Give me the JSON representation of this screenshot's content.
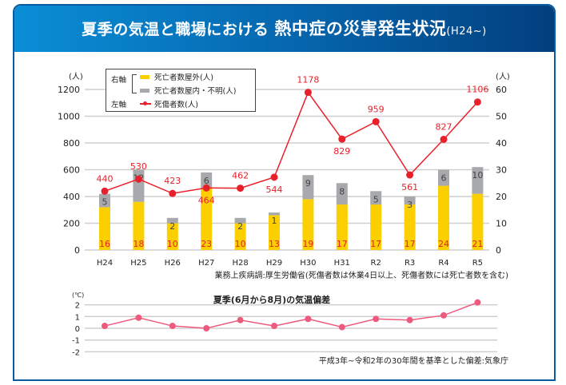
{
  "header": {
    "title_part1": "夏季の気温と職場における",
    "title_part2": "熱中症の災害発生状況",
    "title_part3": "(H24~)"
  },
  "legend": {
    "right_axis": "右軸",
    "left_axis": "左軸",
    "outdoor": "死亡者数屋外(人)",
    "indoor": "死亡者数屋内・不明(人)",
    "casualties": "死傷者数(人)"
  },
  "colors": {
    "outdoor": "#fccf00",
    "indoor": "#a7a9ac",
    "casualties": "#e8202a",
    "temp": "#ee5a7e",
    "header_start": "#0a8ed6",
    "header_end": "#023f7e"
  },
  "chart_data": [
    {
      "type": "bar+line",
      "categories": [
        "H24",
        "H25",
        "H26",
        "H27",
        "H28",
        "H29",
        "H30",
        "H31",
        "R2",
        "R3",
        "R4",
        "R5"
      ],
      "left_axis": {
        "label": "(人)",
        "ylim": [
          0,
          1200
        ],
        "ticks": [
          0,
          200,
          400,
          600,
          800,
          1000,
          1200
        ]
      },
      "right_axis": {
        "label": "(人)",
        "ylim": [
          0,
          60
        ],
        "ticks": [
          0,
          10,
          20,
          30,
          40,
          50,
          60
        ]
      },
      "series": [
        {
          "name": "死亡者数屋外(人)",
          "axis": "right",
          "type": "stacked-bar",
          "values": [
            16,
            18,
            10,
            23,
            10,
            13,
            19,
            17,
            17,
            17,
            24,
            21
          ]
        },
        {
          "name": "死亡者数屋内・不明(人)",
          "axis": "right",
          "type": "stacked-bar",
          "values": [
            5,
            12,
            2,
            6,
            2,
            1,
            9,
            8,
            5,
            3,
            6,
            10
          ]
        },
        {
          "name": "死傷者数(人)",
          "axis": "left",
          "type": "line",
          "values": [
            440,
            530,
            423,
            464,
            462,
            544,
            1178,
            829,
            959,
            561,
            827,
            1106
          ]
        }
      ],
      "note": "業務上疾病調:厚生労働省(死傷者数は休業4日以上、死傷者数には死亡者数を含む)"
    },
    {
      "type": "line",
      "title": "夏季(6月から8月)の気温偏差",
      "ylabel": "(℃)",
      "ylim": [
        -2,
        2
      ],
      "ticks": [
        2,
        1,
        0,
        -1,
        -2
      ],
      "categories": [
        "H24",
        "H25",
        "H26",
        "H27",
        "H28",
        "H29",
        "H30",
        "H31",
        "R2",
        "R3",
        "R4",
        "R5"
      ],
      "values": [
        0.2,
        0.9,
        0.2,
        0.0,
        0.7,
        0.2,
        0.8,
        0.1,
        0.8,
        0.7,
        1.1,
        2.2
      ],
      "note": "平成3年~令和2年の30年間を基準とした偏差:気象庁"
    }
  ]
}
